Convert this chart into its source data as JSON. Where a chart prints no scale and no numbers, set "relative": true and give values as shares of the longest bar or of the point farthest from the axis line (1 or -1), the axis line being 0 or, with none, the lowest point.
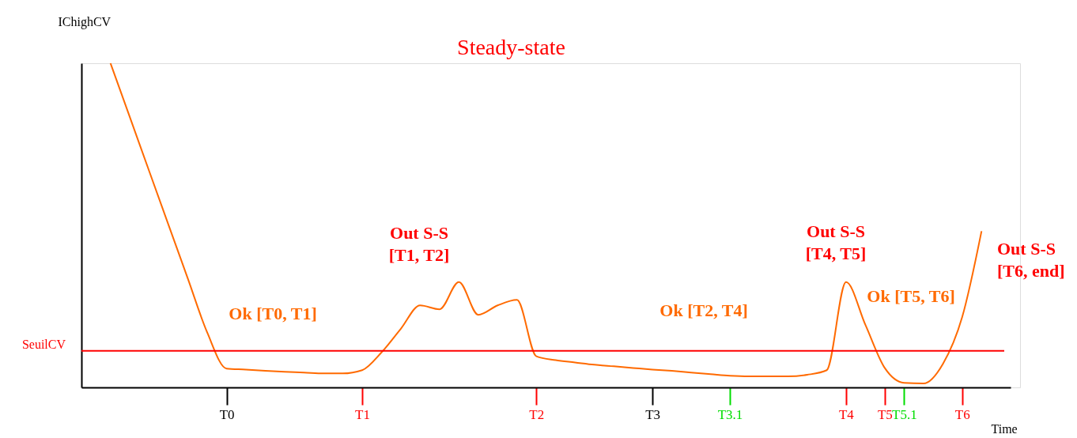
{
  "chart_data": {
    "type": "line",
    "title": "Steady-state",
    "xlabel": "Time",
    "ylabel": "IChighCV",
    "relative": true,
    "categories": [
      null,
      null,
      null,
      null,
      null,
      null,
      null,
      "T0",
      null,
      null,
      null,
      null,
      null,
      null,
      "T1",
      null,
      null,
      null,
      null,
      null,
      null,
      null,
      null,
      "T2",
      null,
      null,
      null,
      null,
      null,
      "T3",
      null,
      null,
      null,
      "T3.1",
      null,
      null,
      null,
      null,
      null,
      "T4",
      null,
      "T5",
      "T5.1",
      null,
      null,
      "T6",
      null,
      null
    ],
    "series": [
      {
        "color": "#ff6a00",
        "values": [
          null,
          1.0,
          0.834,
          0.667,
          0.501,
          0.335,
          0.169,
          0.058,
          0.055,
          0.051,
          0.048,
          0.046,
          0.043,
          0.043,
          0.053,
          0.108,
          0.181,
          0.253,
          0.241,
          0.325,
          0.224,
          0.253,
          0.27,
          0.096,
          0.084,
          0.077,
          0.07,
          0.065,
          0.06,
          0.055,
          0.051,
          0.046,
          0.041,
          0.036,
          0.034,
          0.034,
          0.034,
          0.039,
          0.053,
          0.325,
          0.193,
          0.06,
          0.014,
          0.012,
          0.072,
          0.217,
          0.482,
          null
        ]
      }
    ],
    "ref_lines": [
      {
        "axis": "y",
        "value": 0.113,
        "label": "SeuilCV",
        "color": "#ff0000"
      }
    ],
    "annotations": [
      "Ok [T0, T1]",
      "Out S-S\n[T1, T2]",
      "Ok [T2, T4]",
      "Out S-S\n[T4, T5]",
      "Ok [T5, T6]",
      "Out S-S\n[T6, end]"
    ],
    "grid": false,
    "marker": "none",
    "line_style": "solid"
  }
}
